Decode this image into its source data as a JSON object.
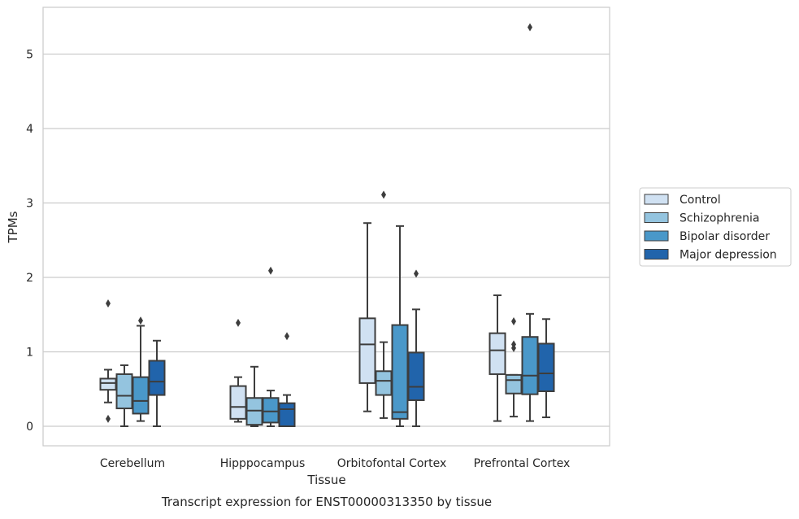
{
  "caption": "Transcript expression for ENST00000313350 by tissue",
  "chart_data": {
    "type": "box",
    "xlabel": "Tissue",
    "ylabel": "TPMs",
    "ylim": [
      -0.25,
      5.65
    ],
    "yticks": [
      0,
      1,
      2,
      3,
      4,
      5
    ],
    "grid": "horizontal",
    "legend_position": "right",
    "categories": [
      "Cerebellum",
      "Hipppocampus",
      "Orbitofontal Cortex",
      "Prefrontal Cortex"
    ],
    "series": [
      {
        "name": "Control",
        "color": "#d0e1f2",
        "boxes": [
          {
            "q1": 0.49,
            "median": 0.58,
            "q3": 0.64,
            "whislo": 0.32,
            "whishi": 0.76,
            "fliers": [
              1.65,
              0.1
            ]
          },
          {
            "q1": 0.1,
            "median": 0.26,
            "q3": 0.54,
            "whislo": 0.06,
            "whishi": 0.66,
            "fliers": [
              1.39
            ]
          },
          {
            "q1": 0.58,
            "median": 1.1,
            "q3": 1.45,
            "whislo": 0.2,
            "whishi": 2.73,
            "fliers": []
          },
          {
            "q1": 0.7,
            "median": 1.02,
            "q3": 1.25,
            "whislo": 0.07,
            "whishi": 1.76,
            "fliers": []
          }
        ]
      },
      {
        "name": "Schizophrenia",
        "color": "#94c4df",
        "boxes": [
          {
            "q1": 0.24,
            "median": 0.41,
            "q3": 0.7,
            "whislo": 0.0,
            "whishi": 0.82,
            "fliers": []
          },
          {
            "q1": 0.02,
            "median": 0.21,
            "q3": 0.38,
            "whislo": 0.0,
            "whishi": 0.8,
            "fliers": []
          },
          {
            "q1": 0.42,
            "median": 0.61,
            "q3": 0.74,
            "whislo": 0.11,
            "whishi": 1.13,
            "fliers": [
              3.11
            ]
          },
          {
            "q1": 0.44,
            "median": 0.62,
            "q3": 0.69,
            "whislo": 0.13,
            "whishi": 0.69,
            "fliers": [
              1.41,
              1.1,
              1.05
            ]
          }
        ]
      },
      {
        "name": "Bipolar disorder",
        "color": "#4a98c9",
        "boxes": [
          {
            "q1": 0.17,
            "median": 0.34,
            "q3": 0.66,
            "whislo": 0.07,
            "whishi": 1.35,
            "fliers": [
              1.42
            ]
          },
          {
            "q1": 0.05,
            "median": 0.2,
            "q3": 0.38,
            "whislo": 0.0,
            "whishi": 0.48,
            "fliers": [
              2.09
            ]
          },
          {
            "q1": 0.1,
            "median": 0.19,
            "q3": 1.36,
            "whislo": 0.0,
            "whishi": 2.69,
            "fliers": []
          },
          {
            "q1": 0.43,
            "median": 0.68,
            "q3": 1.2,
            "whislo": 0.07,
            "whishi": 1.51,
            "fliers": [
              5.36
            ]
          }
        ]
      },
      {
        "name": "Major depression",
        "color": "#2164ab",
        "boxes": [
          {
            "q1": 0.42,
            "median": 0.6,
            "q3": 0.88,
            "whislo": 0.0,
            "whishi": 1.15,
            "fliers": []
          },
          {
            "q1": 0.0,
            "median": 0.23,
            "q3": 0.31,
            "whislo": 0.0,
            "whishi": 0.42,
            "fliers": [
              1.21
            ]
          },
          {
            "q1": 0.35,
            "median": 0.53,
            "q3": 0.99,
            "whislo": 0.0,
            "whishi": 1.57,
            "fliers": [
              2.05
            ]
          },
          {
            "q1": 0.47,
            "median": 0.71,
            "q3": 1.11,
            "whislo": 0.12,
            "whishi": 1.44,
            "fliers": []
          }
        ]
      }
    ]
  }
}
